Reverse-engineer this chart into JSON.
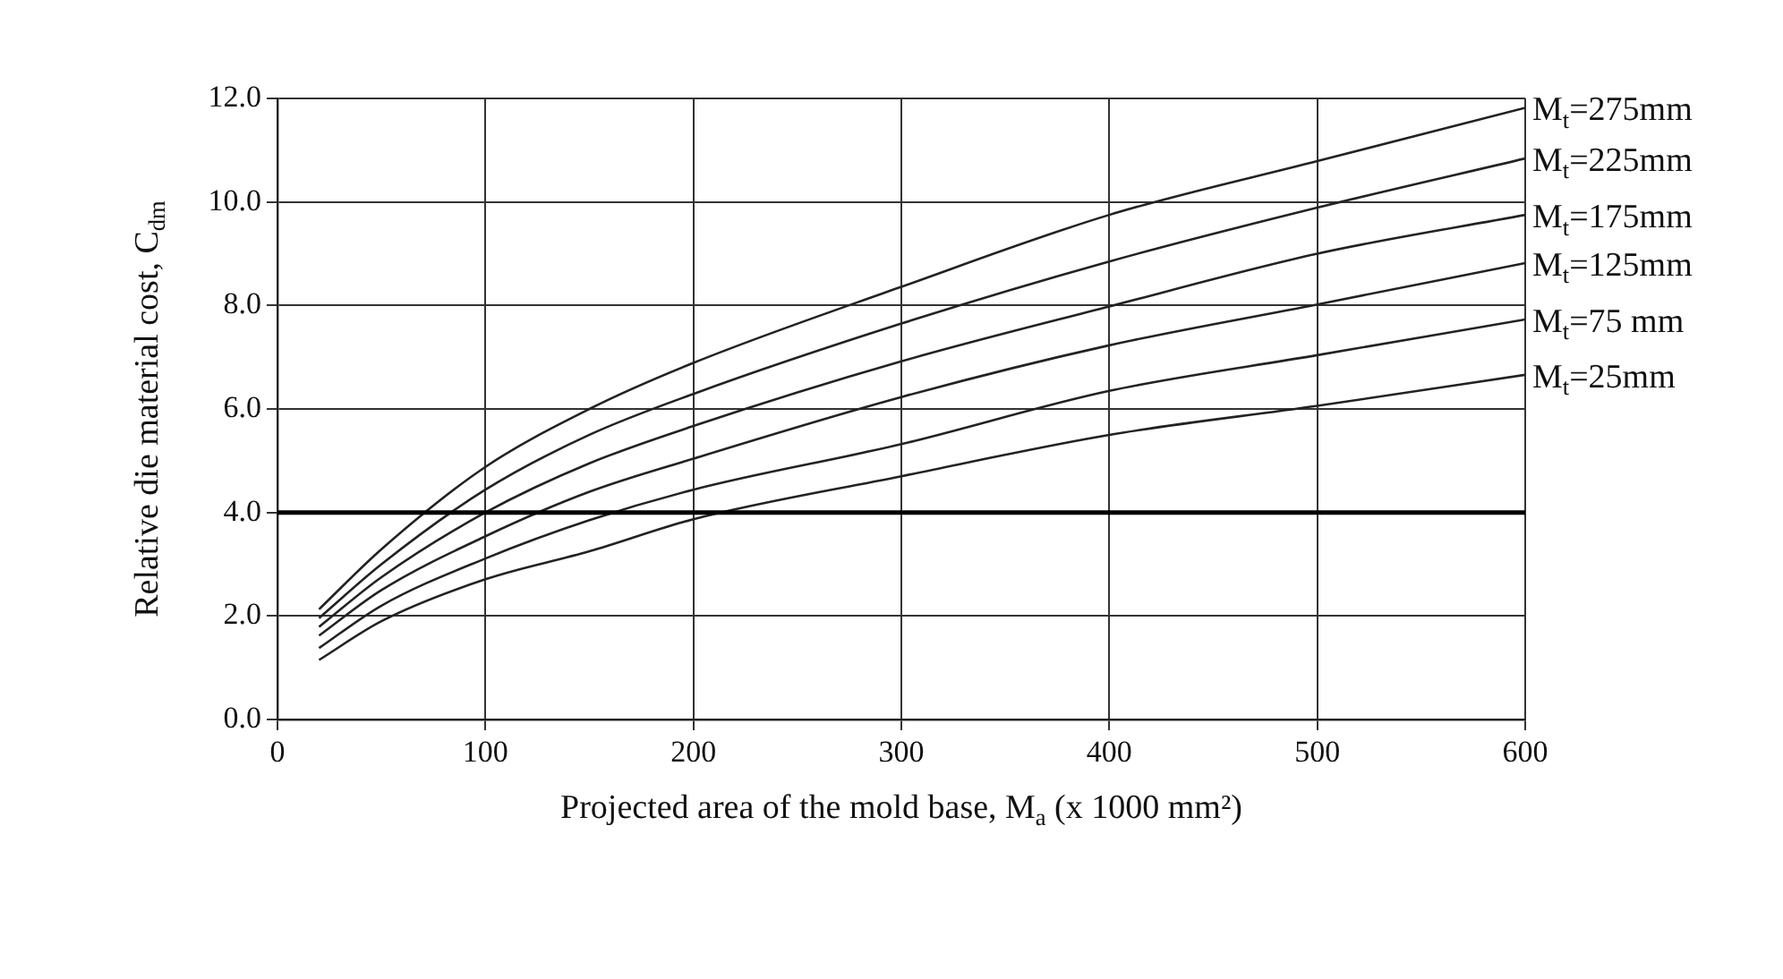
{
  "chart_data": {
    "type": "line",
    "xlabel": "Projected area of the mold base, M$_{a}$ (x 1000 mm²)",
    "ylabel": "Relative die material cost, C$_{dm}$",
    "x": [
      20,
      50,
      100,
      150,
      200,
      300,
      400,
      500,
      600
    ],
    "series": [
      {
        "name": "M$_{t}$=275mm",
        "color": "#222222",
        "values": [
          2.13,
          3.29,
          4.88,
          6.0,
          6.89,
          8.36,
          9.75,
          10.79,
          11.82
        ]
      },
      {
        "name": "M$_{t}$=225mm",
        "color": "#222222",
        "values": [
          1.96,
          3.0,
          4.44,
          5.5,
          6.29,
          7.65,
          8.85,
          9.89,
          10.84
        ]
      },
      {
        "name": "M$_{t}$=175mm",
        "color": "#222222",
        "values": [
          1.79,
          2.75,
          4.0,
          4.95,
          5.67,
          6.92,
          7.98,
          9.0,
          9.75
        ]
      },
      {
        "name": "M$_{t}$=125mm",
        "color": "#222222",
        "values": [
          1.62,
          2.5,
          3.54,
          4.4,
          5.04,
          6.23,
          7.23,
          8.02,
          8.82
        ]
      },
      {
        "name": "M$_{t}$=75 mm",
        "color": "#222222",
        "values": [
          1.38,
          2.2,
          3.11,
          3.85,
          4.44,
          5.32,
          6.35,
          7.04,
          7.73
        ]
      },
      {
        "name": "M$_{t}$=25mm",
        "color": "#222222",
        "values": [
          1.15,
          1.9,
          2.71,
          3.25,
          3.87,
          4.7,
          5.5,
          6.06,
          6.66
        ]
      }
    ],
    "xlim": [
      0,
      600
    ],
    "xticks": [
      0,
      100,
      200,
      300,
      400,
      500,
      600
    ],
    "ylim": [
      0,
      12
    ],
    "yticks": [
      {
        "value": 0,
        "label": "0.0"
      },
      {
        "value": 2,
        "label": "2.0"
      },
      {
        "value": 4,
        "label": "4.0"
      },
      {
        "value": 6,
        "label": "6.0"
      },
      {
        "value": 8,
        "label": "8.0"
      },
      {
        "value": 10,
        "label": "10.0"
      },
      {
        "value": 12,
        "label": "12.0"
      }
    ],
    "ref_lines": [
      {
        "axis": "y",
        "value": 4,
        "color": "#000000"
      }
    ],
    "grid": true,
    "legend": false,
    "marker": "none",
    "line_style": "solid"
  }
}
